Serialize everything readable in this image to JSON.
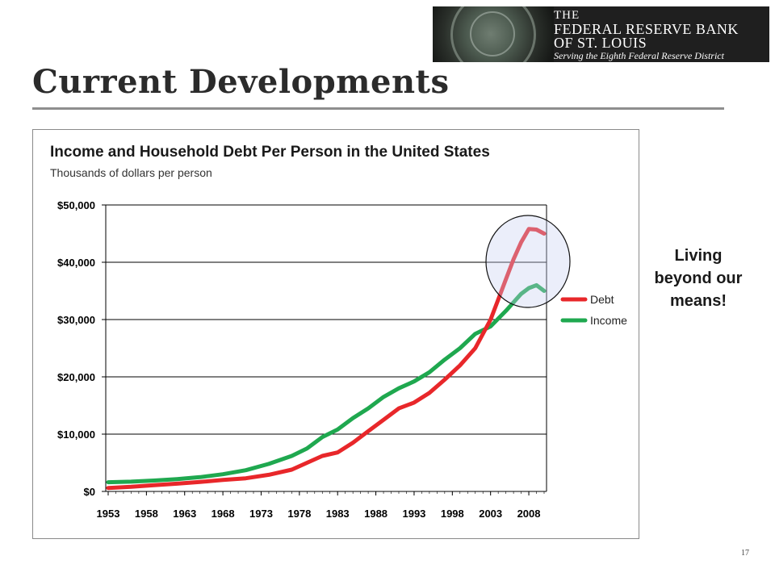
{
  "logo": {
    "line1": "THE",
    "line2": "FEDERAL RESERVE BANK",
    "line3": "OF ST. LOUIS",
    "tagline": "Serving the Eighth Federal Reserve District"
  },
  "slide": {
    "title": "Current Developments",
    "page_number": "17"
  },
  "annotation": {
    "line1": "Living",
    "line2": "beyond our",
    "line3": "means!"
  },
  "colors": {
    "debt": "#e8272a",
    "income": "#1fa84f",
    "grid": "#000000"
  },
  "chart_data": {
    "type": "line",
    "title": "Income and Household Debt Per Person in the United States",
    "subtitle": "Thousands of dollars per person",
    "ylim": [
      0,
      50000
    ],
    "y_ticks": [
      0,
      10000,
      20000,
      30000,
      40000,
      50000
    ],
    "y_tick_labels": [
      "$0",
      "$10,000",
      "$20,000",
      "$30,000",
      "$40,000",
      "$50,000"
    ],
    "xlim": [
      1953,
      2010
    ],
    "x_ticks": [
      1953,
      1958,
      1963,
      1968,
      1973,
      1978,
      1983,
      1988,
      1993,
      1998,
      2003,
      2008
    ],
    "x_tick_labels": [
      "1953",
      "1958",
      "1963",
      "1968",
      "1973",
      "1978",
      "1983",
      "1988",
      "1993",
      "1998",
      "2003",
      "2008"
    ],
    "grid": true,
    "legend": "right",
    "series": [
      {
        "name": "Debt",
        "color": "#e8272a",
        "x": [
          1953,
          1956,
          1959,
          1962,
          1965,
          1968,
          1971,
          1974,
          1977,
          1979,
          1981,
          1983,
          1985,
          1987,
          1989,
          1991,
          1993,
          1995,
          1997,
          1999,
          2001,
          2003,
          2004,
          2005,
          2006,
          2007,
          2008,
          2009,
          2010
        ],
        "y": [
          600,
          800,
          1100,
          1350,
          1650,
          2000,
          2300,
          2900,
          3800,
          5000,
          6200,
          6800,
          8500,
          10500,
          12500,
          14500,
          15500,
          17200,
          19500,
          22000,
          25000,
          30000,
          33500,
          37000,
          40500,
          43500,
          45800,
          45700,
          45000
        ]
      },
      {
        "name": "Income",
        "color": "#1fa84f",
        "x": [
          1953,
          1956,
          1959,
          1962,
          1965,
          1968,
          1971,
          1974,
          1977,
          1979,
          1981,
          1983,
          1985,
          1987,
          1989,
          1991,
          1993,
          1995,
          1997,
          1999,
          2001,
          2003,
          2005,
          2007,
          2008,
          2009,
          2010
        ],
        "y": [
          1600,
          1700,
          1900,
          2150,
          2500,
          3000,
          3700,
          4800,
          6200,
          7500,
          9500,
          10800,
          12800,
          14500,
          16500,
          18000,
          19200,
          20800,
          23000,
          25000,
          27500,
          28800,
          31500,
          34500,
          35500,
          36000,
          35000
        ]
      }
    ]
  }
}
